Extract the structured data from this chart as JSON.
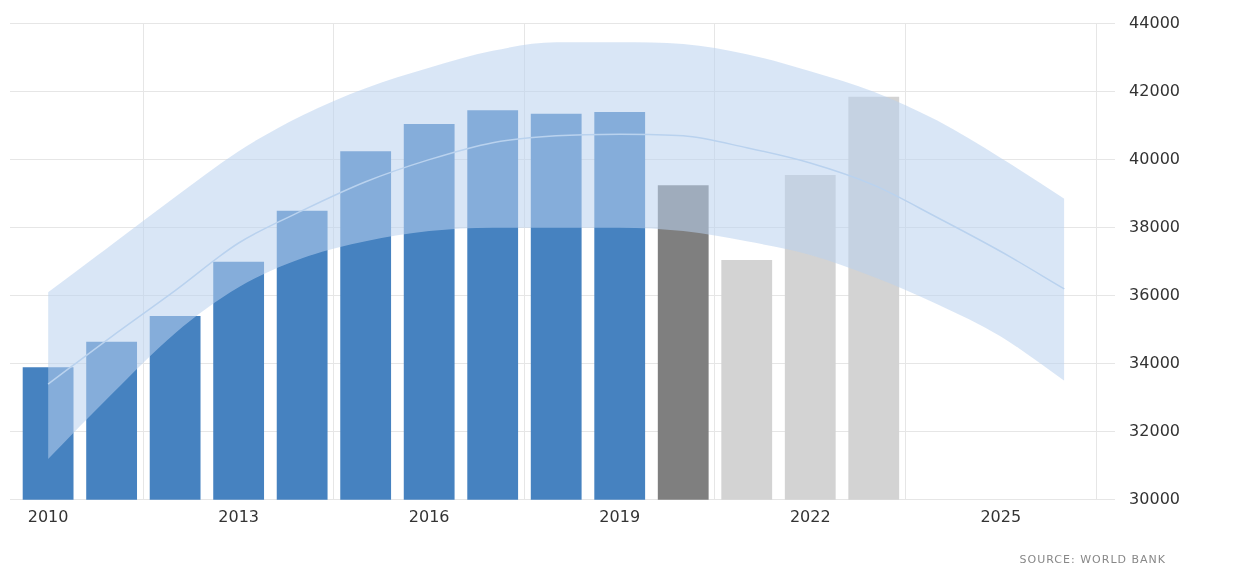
{
  "chart_data": {
    "type": "bar",
    "x": [
      2010,
      2011,
      2012,
      2013,
      2014,
      2015,
      2016,
      2017,
      2018,
      2019,
      2020,
      2021,
      2022,
      2023
    ],
    "series": [
      {
        "colors": [
          "#4682c0",
          "#4682c0",
          "#4682c0",
          "#4682c0",
          "#4682c0",
          "#4682c0",
          "#4682c0",
          "#4682c0",
          "#4682c0",
          "#4682c0",
          "#7f7f7f",
          "#d3d3d3",
          "#d3d3d3",
          "#d3d3d3"
        ],
        "values": [
          33900,
          34650,
          35400,
          37000,
          38500,
          40250,
          41050,
          41450,
          41350,
          41400,
          39250,
          37050,
          39550,
          41850
        ]
      },
      {
        "type": "line",
        "color": "#b9d2ee",
        "x": [
          2010,
          2011,
          2012,
          2013,
          2014,
          2015,
          2016,
          2017,
          2018,
          2019,
          2020,
          2021,
          2022,
          2023,
          2024,
          2025,
          2026
        ],
        "values": [
          33400,
          34800,
          36150,
          37550,
          38500,
          39350,
          40000,
          40500,
          40700,
          40750,
          40700,
          40350,
          39900,
          39250,
          38300,
          37300,
          36200
        ],
        "lower": [
          31200,
          33100,
          34900,
          36250,
          37100,
          37600,
          37900,
          38000,
          38000,
          38000,
          37900,
          37600,
          37200,
          36550,
          35750,
          34800,
          33500
        ],
        "upper": [
          36100,
          37500,
          38900,
          40250,
          41300,
          42100,
          42700,
          43200,
          43450,
          43450,
          43400,
          43100,
          42600,
          42000,
          41150,
          40050,
          38850
        ]
      }
    ],
    "xlim": [
      2009.4,
      2026.8
    ],
    "xticks": [
      2010,
      2013,
      2016,
      2019,
      2022,
      2025
    ],
    "ylim": [
      30000,
      44000
    ],
    "yticks": [
      30000,
      32000,
      34000,
      36000,
      38000,
      40000,
      42000,
      44000
    ],
    "grid": true,
    "legend": false,
    "marker": "none",
    "line_style": "solid",
    "annotations": [
      "SOURCE: WORLD BANK"
    ]
  }
}
